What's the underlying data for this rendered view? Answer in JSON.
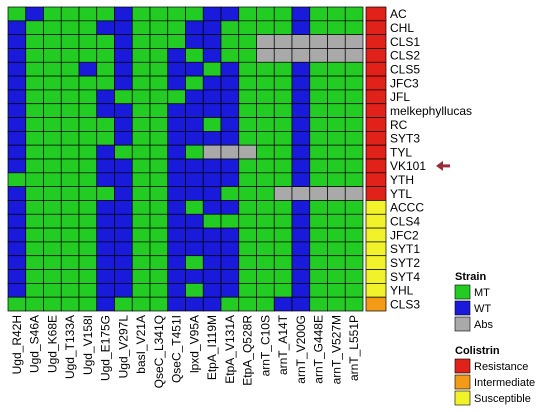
{
  "chart_data": {
    "type": "heatmap",
    "columns": [
      "Ugd_R42H",
      "Ugd_S46A",
      "Ugd_K68E",
      "Ugd_T133A",
      "Ugd_V158I",
      "Ugd_E175G",
      "Ugd_V297L",
      "basI_V21A",
      "QseC_L341Q",
      "QseC_T451I",
      "lpxd_V95A",
      "EtpA_I119M",
      "EtpA_V131A",
      "EtpA_Q528R",
      "arnT_C10S",
      "arnT_A14T",
      "arnT_V200G",
      "arnT_G448E",
      "arnT_V527M",
      "arnT_L551P"
    ],
    "rows": [
      "AC",
      "CHL",
      "CLS1",
      "CLS2",
      "CLS5",
      "JFC3",
      "JFL",
      "melkephyllucas",
      "RC",
      "SYT3",
      "TYL",
      "VK101",
      "YTH",
      "YTL",
      "ACCC",
      "CLS4",
      "JFC2",
      "SYT1",
      "SYT2",
      "SYT4",
      "YHL",
      "CLS3"
    ],
    "matrix": [
      [
        0,
        1,
        0,
        0,
        0,
        0,
        1,
        0,
        0,
        0,
        0,
        1,
        1,
        0,
        0,
        0,
        1,
        0,
        0,
        0
      ],
      [
        1,
        0,
        0,
        0,
        0,
        1,
        1,
        0,
        0,
        0,
        1,
        1,
        0,
        0,
        0,
        0,
        1,
        0,
        0,
        0
      ],
      [
        1,
        0,
        0,
        0,
        0,
        0,
        1,
        0,
        0,
        0,
        1,
        1,
        0,
        0,
        2,
        2,
        2,
        2,
        2,
        2
      ],
      [
        1,
        0,
        0,
        0,
        0,
        0,
        1,
        0,
        0,
        1,
        0,
        1,
        0,
        0,
        2,
        2,
        2,
        2,
        2,
        2
      ],
      [
        1,
        0,
        0,
        0,
        1,
        0,
        1,
        0,
        0,
        1,
        1,
        0,
        1,
        0,
        0,
        0,
        1,
        0,
        0,
        0
      ],
      [
        1,
        0,
        0,
        0,
        0,
        0,
        1,
        0,
        0,
        1,
        0,
        1,
        1,
        0,
        0,
        0,
        1,
        0,
        0,
        0
      ],
      [
        1,
        0,
        0,
        0,
        0,
        1,
        0,
        0,
        0,
        0,
        1,
        1,
        1,
        0,
        0,
        0,
        1,
        0,
        0,
        0
      ],
      [
        1,
        0,
        0,
        0,
        0,
        1,
        1,
        0,
        0,
        1,
        1,
        1,
        1,
        0,
        0,
        0,
        1,
        0,
        0,
        0
      ],
      [
        1,
        0,
        0,
        0,
        0,
        0,
        1,
        0,
        0,
        1,
        1,
        0,
        1,
        0,
        0,
        0,
        1,
        0,
        0,
        0
      ],
      [
        1,
        0,
        0,
        0,
        0,
        0,
        1,
        0,
        0,
        1,
        1,
        1,
        1,
        0,
        0,
        0,
        1,
        0,
        0,
        0
      ],
      [
        1,
        0,
        0,
        0,
        0,
        1,
        0,
        0,
        0,
        1,
        0,
        2,
        2,
        2,
        0,
        0,
        1,
        0,
        0,
        0
      ],
      [
        1,
        0,
        0,
        0,
        0,
        1,
        1,
        0,
        0,
        1,
        1,
        1,
        1,
        0,
        0,
        0,
        1,
        0,
        0,
        0
      ],
      [
        0,
        0,
        0,
        0,
        0,
        1,
        1,
        0,
        0,
        1,
        1,
        1,
        1,
        0,
        0,
        0,
        1,
        0,
        0,
        0
      ],
      [
        1,
        0,
        0,
        0,
        0,
        0,
        1,
        0,
        0,
        1,
        1,
        1,
        0,
        0,
        0,
        2,
        2,
        2,
        2,
        2
      ],
      [
        1,
        0,
        0,
        0,
        0,
        1,
        1,
        0,
        0,
        1,
        0,
        1,
        1,
        0,
        0,
        0,
        1,
        0,
        0,
        0
      ],
      [
        1,
        0,
        0,
        0,
        0,
        1,
        1,
        0,
        0,
        1,
        1,
        0,
        0,
        0,
        0,
        0,
        1,
        0,
        0,
        0
      ],
      [
        1,
        0,
        0,
        0,
        0,
        1,
        1,
        0,
        0,
        1,
        1,
        1,
        1,
        0,
        0,
        0,
        1,
        0,
        0,
        0
      ],
      [
        1,
        0,
        0,
        0,
        0,
        1,
        1,
        0,
        0,
        1,
        1,
        1,
        1,
        0,
        0,
        0,
        1,
        0,
        0,
        0
      ],
      [
        1,
        0,
        0,
        0,
        0,
        1,
        1,
        0,
        0,
        1,
        0,
        1,
        1,
        0,
        0,
        0,
        1,
        0,
        0,
        0
      ],
      [
        1,
        0,
        0,
        0,
        0,
        1,
        1,
        0,
        0,
        1,
        1,
        1,
        1,
        0,
        0,
        0,
        1,
        0,
        0,
        0
      ],
      [
        1,
        0,
        0,
        0,
        0,
        1,
        1,
        0,
        0,
        1,
        0,
        1,
        1,
        0,
        0,
        0,
        1,
        0,
        0,
        0
      ],
      [
        0,
        0,
        0,
        0,
        0,
        1,
        0,
        0,
        0,
        1,
        1,
        1,
        0,
        0,
        0,
        1,
        1,
        0,
        0,
        0
      ]
    ],
    "row_class": [
      "Resistance",
      "Resistance",
      "Resistance",
      "Resistance",
      "Resistance",
      "Resistance",
      "Resistance",
      "Resistance",
      "Resistance",
      "Resistance",
      "Resistance",
      "Resistance",
      "Resistance",
      "Resistance",
      "Susceptible",
      "Susceptible",
      "Susceptible",
      "Susceptible",
      "Susceptible",
      "Susceptible",
      "Susceptible",
      "Intermediate"
    ],
    "highlighted_row": "VK101",
    "legends": [
      {
        "title": "Strain",
        "items": [
          {
            "label": "MT",
            "color": "#22cc22"
          },
          {
            "label": "WT",
            "color": "#1a1adb"
          },
          {
            "label": "Abs",
            "color": "#a9a9a9"
          }
        ]
      },
      {
        "title": "Colistrin",
        "items": [
          {
            "label": "Resistance",
            "color": "#e0221a"
          },
          {
            "label": "Intermediate",
            "color": "#f39a17"
          },
          {
            "label": "Susceptible",
            "color": "#f2f22a"
          }
        ]
      }
    ],
    "cell_colors": [
      "#22cc22",
      "#1a1adb",
      "#a9a9a9"
    ],
    "class_colors": {
      "Resistance": "#e0221a",
      "Intermediate": "#f39a17",
      "Susceptible": "#f2f22a"
    },
    "arrow_color": "#9c2b38"
  }
}
